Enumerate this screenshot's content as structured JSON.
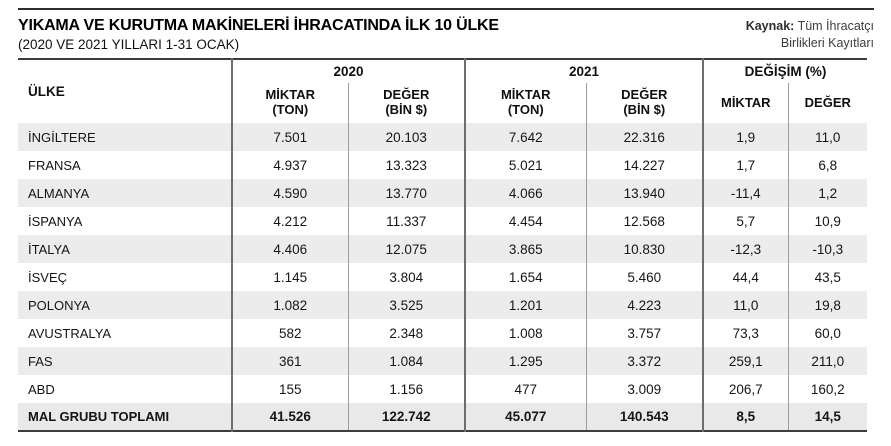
{
  "header": {
    "title": "YIKAMA VE KURUTMA MAKİNELERİ İHRACATINDA İLK 10 ÜLKE",
    "subtitle": "(2020 VE 2021 YILLARI 1-31 OCAK)",
    "source_label": "Kaynak:",
    "source_line1": "Tüm İhracatçı",
    "source_line2": "Birlikleri Kayıtları"
  },
  "table": {
    "country_header": "ÜLKE",
    "group_2020": "2020",
    "group_2021": "2021",
    "group_change": "DEĞİŞİM (%)",
    "sub_amount": "MİKTAR",
    "sub_amount_unit": "(TON)",
    "sub_value": "DEĞER",
    "sub_value_unit": "(BİN $)",
    "change_amount": "MİKTAR",
    "change_value": "DEĞER",
    "rows": [
      {
        "country": "İNGİLTERE",
        "m2020": "7.501",
        "d2020": "20.103",
        "m2021": "7.642",
        "d2021": "22.316",
        "cm": "1,9",
        "cd": "11,0"
      },
      {
        "country": "FRANSA",
        "m2020": "4.937",
        "d2020": "13.323",
        "m2021": "5.021",
        "d2021": "14.227",
        "cm": "1,7",
        "cd": "6,8"
      },
      {
        "country": "ALMANYA",
        "m2020": "4.590",
        "d2020": "13.770",
        "m2021": "4.066",
        "d2021": "13.940",
        "cm": "-11,4",
        "cd": "1,2"
      },
      {
        "country": "İSPANYA",
        "m2020": "4.212",
        "d2020": "11.337",
        "m2021": "4.454",
        "d2021": "12.568",
        "cm": "5,7",
        "cd": "10,9"
      },
      {
        "country": "İTALYA",
        "m2020": "4.406",
        "d2020": "12.075",
        "m2021": "3.865",
        "d2021": "10.830",
        "cm": "-12,3",
        "cd": "-10,3"
      },
      {
        "country": "İSVEÇ",
        "m2020": "1.145",
        "d2020": "3.804",
        "m2021": "1.654",
        "d2021": "5.460",
        "cm": "44,4",
        "cd": "43,5"
      },
      {
        "country": "POLONYA",
        "m2020": "1.082",
        "d2020": "3.525",
        "m2021": "1.201",
        "d2021": "4.223",
        "cm": "11,0",
        "cd": "19,8"
      },
      {
        "country": "AVUSTRALYA",
        "m2020": "582",
        "d2020": "2.348",
        "m2021": "1.008",
        "d2021": "3.757",
        "cm": "73,3",
        "cd": "60,0"
      },
      {
        "country": "FAS",
        "m2020": "361",
        "d2020": "1.084",
        "m2021": "1.295",
        "d2021": "3.372",
        "cm": "259,1",
        "cd": "211,0"
      },
      {
        "country": "ABD",
        "m2020": "155",
        "d2020": "1.156",
        "m2021": "477",
        "d2021": "3.009",
        "cm": "206,7",
        "cd": "160,2"
      }
    ],
    "total": {
      "country": "MAL GRUBU TOPLAMI",
      "m2020": "41.526",
      "d2020": "122.742",
      "m2021": "45.077",
      "d2021": "140.543",
      "cm": "8,5",
      "cd": "14,5"
    }
  },
  "colors": {
    "row_shade": "#ececec",
    "total_shade": "#e9e9e9",
    "rule_dark": "#3c3c3c",
    "divider_dark": "#6d6d6d",
    "divider_light": "#9c9c9c"
  },
  "chart_data": {
    "type": "table",
    "title": "YIKAMA VE KURUTMA MAKİNELERİ İHRACATINDA İLK 10 ÜLKE",
    "subtitle": "(2020 VE 2021 YILLARI 1-31 OCAK)",
    "source": "Kaynak: Tüm İhracatçı Birlikleri Kayıtları",
    "columns": [
      "ÜLKE",
      "2020 MİKTAR (TON)",
      "2020 DEĞER (BİN $)",
      "2021 MİKTAR (TON)",
      "2021 DEĞER (BİN $)",
      "DEĞİŞİM (%) MİKTAR",
      "DEĞİŞİM (%) DEĞER"
    ],
    "rows": [
      [
        "İNGİLTERE",
        7501,
        20103,
        7642,
        22316,
        1.9,
        11.0
      ],
      [
        "FRANSA",
        4937,
        13323,
        5021,
        14227,
        1.7,
        6.8
      ],
      [
        "ALMANYA",
        4590,
        13770,
        4066,
        13940,
        -11.4,
        1.2
      ],
      [
        "İSPANYA",
        4212,
        11337,
        4454,
        12568,
        5.7,
        10.9
      ],
      [
        "İTALYA",
        4406,
        12075,
        3865,
        10830,
        -12.3,
        -10.3
      ],
      [
        "İSVEÇ",
        1145,
        3804,
        1654,
        5460,
        44.4,
        43.5
      ],
      [
        "POLONYA",
        1082,
        3525,
        1201,
        4223,
        11.0,
        19.8
      ],
      [
        "AVUSTRALYA",
        582,
        2348,
        1008,
        3757,
        73.3,
        60.0
      ],
      [
        "FAS",
        361,
        1084,
        1295,
        3372,
        259.1,
        211.0
      ],
      [
        "ABD",
        155,
        1156,
        477,
        3009,
        206.7,
        160.2
      ],
      [
        "MAL GRUBU TOPLAMI",
        41526,
        122742,
        45077,
        140543,
        8.5,
        14.5
      ]
    ]
  }
}
